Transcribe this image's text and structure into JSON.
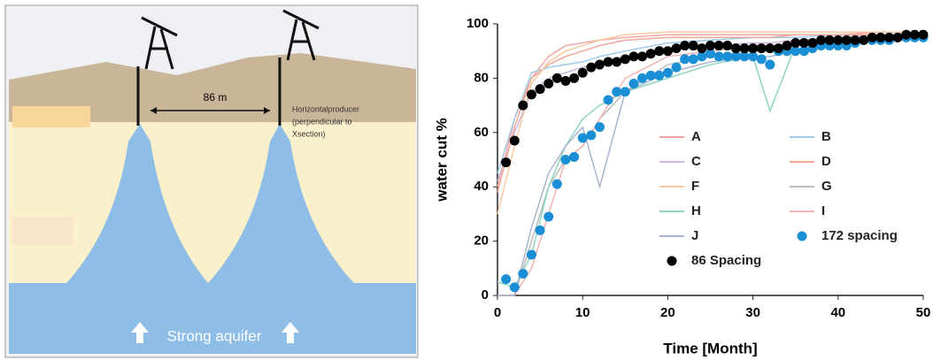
{
  "diagram": {
    "spacing_label": "86 m",
    "producer_note": [
      "Horizontalproducer",
      "(perpendicular to",
      "Xsection)"
    ],
    "aquifer_label": "Strong aquifer"
  },
  "chart_data": {
    "type": "line",
    "x_label": "Time [Month]",
    "y_label": "water cut %",
    "xlim": [
      0,
      50
    ],
    "ylim": [
      0,
      100
    ],
    "xticks": [
      0,
      10,
      20,
      30,
      40,
      50
    ],
    "yticks": [
      0,
      20,
      40,
      60,
      80,
      100
    ],
    "series": [
      {
        "name": "A",
        "color": "#f4a6a6",
        "mode": "line",
        "x": [
          0,
          2,
          4,
          6,
          8,
          10,
          12,
          15,
          20,
          25,
          30,
          32,
          35,
          40,
          45,
          50
        ],
        "values": [
          40,
          65,
          80,
          88,
          92,
          93,
          94,
          95,
          96,
          96,
          96,
          96,
          96,
          96,
          97,
          97
        ]
      },
      {
        "name": "B",
        "color": "#9fc9e6",
        "mode": "line",
        "x": [
          0,
          2,
          4,
          6,
          8,
          10,
          12,
          15,
          20,
          25,
          30,
          32,
          35,
          40,
          45,
          50
        ],
        "values": [
          45,
          65,
          82,
          84,
          85,
          86,
          88,
          90,
          93,
          94,
          95,
          95,
          95,
          96,
          96,
          96
        ]
      },
      {
        "name": "C",
        "color": "#c9b8dc",
        "mode": "line",
        "x": [
          0,
          2,
          4,
          6,
          8,
          10,
          12,
          15,
          20,
          25,
          30,
          32,
          35,
          40,
          45,
          50
        ],
        "values": [
          42,
          60,
          75,
          80,
          82,
          84,
          86,
          88,
          90,
          92,
          93,
          93,
          94,
          95,
          96,
          96
        ]
      },
      {
        "name": "D",
        "color": "#f0a898",
        "mode": "line",
        "x": [
          0,
          2,
          4,
          6,
          8,
          10,
          12,
          15,
          20,
          25,
          30,
          32,
          35,
          40,
          45,
          50
        ],
        "values": [
          38,
          62,
          80,
          85,
          88,
          90,
          92,
          94,
          95,
          95,
          95,
          95,
          96,
          96,
          96,
          96
        ]
      },
      {
        "name": "F",
        "color": "#f8c8a0",
        "mode": "line",
        "x": [
          0,
          2,
          4,
          6,
          8,
          10,
          12,
          15,
          20,
          25,
          30,
          32,
          35,
          40,
          45,
          50
        ],
        "values": [
          30,
          55,
          78,
          86,
          90,
          92,
          94,
          96,
          97,
          97,
          97,
          97,
          97,
          97,
          97,
          97
        ]
      },
      {
        "name": "G",
        "color": "#bcbcbc",
        "mode": "line",
        "x": [
          0,
          2,
          4,
          6,
          8,
          10,
          12,
          15,
          20,
          25,
          30,
          32,
          35,
          40,
          45,
          50
        ],
        "values": [
          0,
          0,
          20,
          40,
          50,
          55,
          65,
          75,
          85,
          88,
          90,
          90,
          92,
          94,
          95,
          96
        ]
      },
      {
        "name": "H",
        "color": "#8fd4bf",
        "mode": "line",
        "x": [
          0,
          2,
          4,
          6,
          8,
          10,
          12,
          15,
          20,
          25,
          30,
          32,
          35,
          40,
          45,
          50
        ],
        "values": [
          5,
          3,
          15,
          40,
          55,
          65,
          70,
          75,
          80,
          85,
          88,
          68,
          92,
          93,
          94,
          95
        ]
      },
      {
        "name": "I",
        "color": "#f4b4b4",
        "mode": "line",
        "x": [
          0,
          2,
          4,
          6,
          8,
          10,
          12,
          15,
          20,
          25,
          30,
          32,
          35,
          40,
          45,
          50
        ],
        "values": [
          0,
          0,
          10,
          30,
          50,
          55,
          65,
          80,
          88,
          90,
          92,
          92,
          93,
          94,
          95,
          96
        ]
      },
      {
        "name": "J",
        "color": "#a8b4d0",
        "mode": "line",
        "x": [
          0,
          2,
          4,
          6,
          8,
          10,
          12,
          15,
          20,
          25,
          30,
          32,
          35,
          40,
          45,
          50
        ],
        "values": [
          0,
          0,
          25,
          45,
          55,
          62,
          40,
          75,
          82,
          86,
          88,
          88,
          90,
          92,
          94,
          95
        ]
      },
      {
        "name": "172 spacing",
        "color": "#1a8fd6",
        "mode": "markers",
        "x": [
          1,
          2,
          3,
          4,
          5,
          6,
          7,
          8,
          9,
          10,
          11,
          12,
          13,
          14,
          15,
          16,
          17,
          18,
          19,
          20,
          21,
          22,
          23,
          24,
          25,
          26,
          27,
          28,
          29,
          30,
          31,
          32,
          33,
          34,
          35,
          36,
          37,
          38,
          39,
          40,
          41,
          42,
          43,
          44,
          45,
          46,
          47,
          48,
          49,
          50
        ],
        "values": [
          6,
          3,
          8,
          15,
          24,
          29,
          41,
          50,
          51,
          58,
          59,
          62,
          72,
          75,
          75,
          78,
          80,
          81,
          81,
          82,
          84,
          87,
          87,
          88,
          89,
          88,
          88,
          88,
          88,
          88,
          87,
          85,
          90,
          90,
          90,
          90,
          91,
          92,
          92,
          92,
          92,
          93,
          94,
          94,
          94,
          94,
          95,
          95,
          95,
          95
        ]
      },
      {
        "name": "86 Spacing",
        "color": "#000000",
        "mode": "markers",
        "x": [
          1,
          2,
          3,
          4,
          5,
          6,
          7,
          8,
          9,
          10,
          11,
          12,
          13,
          14,
          15,
          16,
          17,
          18,
          19,
          20,
          21,
          22,
          23,
          24,
          25,
          26,
          27,
          28,
          29,
          30,
          31,
          32,
          33,
          34,
          35,
          36,
          37,
          38,
          39,
          40,
          41,
          42,
          43,
          44,
          45,
          46,
          47,
          48,
          49,
          50
        ],
        "values": [
          49,
          57,
          70,
          74,
          76,
          78,
          80,
          79,
          80,
          82,
          84,
          85,
          86,
          86,
          87,
          88,
          88,
          89,
          90,
          90,
          91,
          92,
          92,
          91,
          92,
          92,
          92,
          91,
          91,
          91,
          91,
          91,
          91,
          92,
          93,
          93,
          93,
          94,
          94,
          94,
          94,
          94,
          94,
          95,
          95,
          95,
          95,
          96,
          96,
          96
        ]
      }
    ]
  }
}
